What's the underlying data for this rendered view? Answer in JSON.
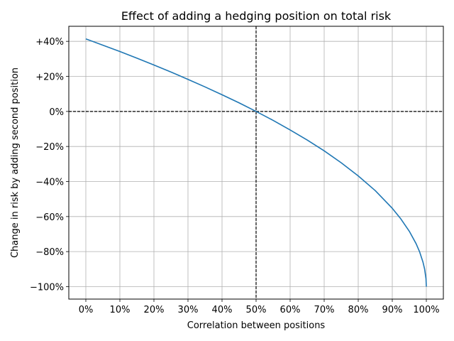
{
  "chart_data": {
    "type": "line",
    "title": "Effect of adding a hedging position on total risk",
    "xlabel": "Correlation between positions",
    "ylabel": "Change in risk by adding second position",
    "xlim": [
      -0.05,
      1.05
    ],
    "ylim": [
      -1.071,
      0.4859
    ],
    "x_ticks": [
      0,
      0.1,
      0.2,
      0.3,
      0.4,
      0.5,
      0.6,
      0.7,
      0.8,
      0.9,
      1.0
    ],
    "x_tick_labels": [
      "0%",
      "10%",
      "20%",
      "30%",
      "40%",
      "50%",
      "60%",
      "70%",
      "80%",
      "90%",
      "100%"
    ],
    "y_ticks": [
      -1.0,
      -0.8,
      -0.6,
      -0.4,
      -0.2,
      0.0,
      0.2,
      0.4
    ],
    "y_tick_labels": [
      "−100%",
      "−80%",
      "−60%",
      "−40%",
      "−20%",
      "0%",
      "+20%",
      "+40%"
    ],
    "grid": true,
    "reference_lines": [
      {
        "orientation": "vertical",
        "value": 0.5,
        "style": "dashed",
        "color": "#000000"
      },
      {
        "orientation": "horizontal",
        "value": 0.0,
        "style": "dashed",
        "color": "#000000"
      }
    ],
    "series": [
      {
        "color": "#1f77b4",
        "x": [
          0,
          0.05,
          0.1,
          0.15,
          0.2,
          0.25,
          0.3,
          0.35,
          0.4,
          0.45,
          0.5,
          0.55,
          0.6,
          0.65,
          0.7,
          0.75,
          0.8,
          0.85,
          0.9,
          0.925,
          0.95,
          0.97,
          0.98,
          0.99,
          0.995,
          0.999,
          1.0
        ],
        "y": [
          0.414,
          0.378,
          0.342,
          0.304,
          0.265,
          0.225,
          0.183,
          0.14,
          0.095,
          0.049,
          0.0,
          -0.051,
          -0.106,
          -0.163,
          -0.225,
          -0.293,
          -0.368,
          -0.452,
          -0.553,
          -0.613,
          -0.684,
          -0.755,
          -0.8,
          -0.859,
          -0.9,
          -0.955,
          -1.0
        ]
      }
    ]
  }
}
